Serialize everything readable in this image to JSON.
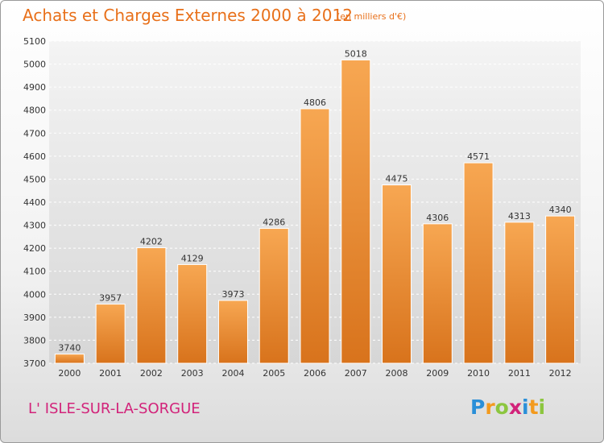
{
  "title": "Achats et Charges Externes 2000 à 2012",
  "subtitle": "(en milliers d'€)",
  "commune": "L' ISLE-SUR-LA-SORGUE",
  "logo": {
    "letters": [
      {
        "ch": "P",
        "color": "#2a8fd8"
      },
      {
        "ch": "r",
        "color": "#f39a1e"
      },
      {
        "ch": "o",
        "color": "#8cc63f"
      },
      {
        "ch": "x",
        "color": "#d2237a"
      },
      {
        "ch": "i",
        "color": "#2a8fd8"
      },
      {
        "ch": "t",
        "color": "#f39a1e"
      },
      {
        "ch": "i",
        "color": "#8cc63f"
      }
    ]
  },
  "colors": {
    "title": "#e8701a",
    "commune": "#d2237a",
    "bar_top": "#f7a752",
    "bar_bottom": "#d8731c"
  },
  "chart_data": {
    "type": "bar",
    "categories": [
      "2000",
      "2001",
      "2002",
      "2003",
      "2004",
      "2005",
      "2006",
      "2007",
      "2008",
      "2009",
      "2010",
      "2011",
      "2012"
    ],
    "values": [
      3740,
      3957,
      4202,
      4129,
      3973,
      4286,
      4806,
      5018,
      4475,
      4306,
      4571,
      4313,
      4340
    ],
    "ylim": [
      3700,
      5100
    ],
    "yticks": [
      3700,
      3800,
      3900,
      4000,
      4100,
      4200,
      4300,
      4400,
      4500,
      4600,
      4700,
      4800,
      4900,
      5000,
      5100
    ],
    "grid": true,
    "data_labels": true,
    "legend": "none"
  }
}
